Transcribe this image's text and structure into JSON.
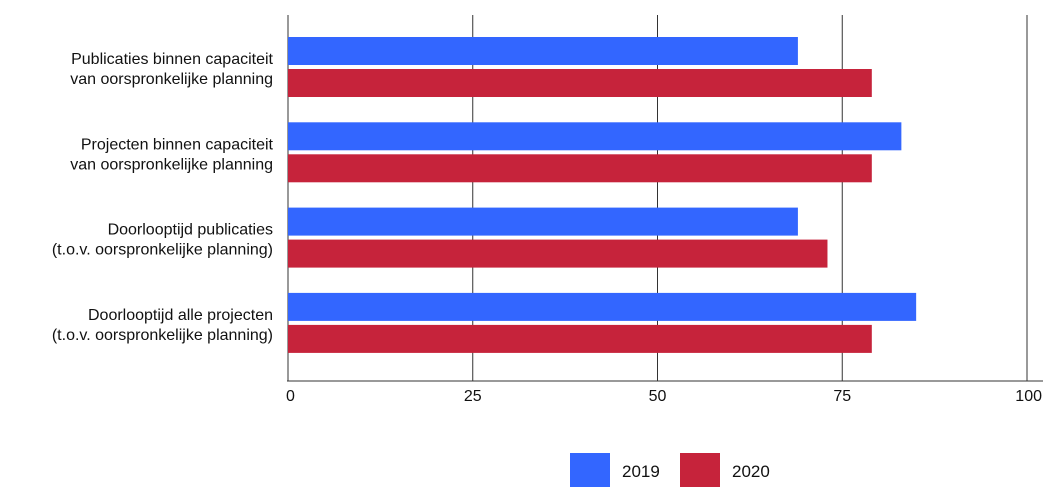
{
  "chart_data": {
    "type": "bar",
    "orientation": "horizontal",
    "categories": [
      [
        "Publicaties binnen capaciteit",
        "van oorspronkelijke planning"
      ],
      [
        "Projecten binnen capaciteit",
        "van oorspronkelijke planning"
      ],
      [
        "Doorlooptijd publicaties",
        "(t.o.v. oorspronkelijke planning)"
      ],
      [
        "Doorlooptijd alle projecten",
        "(t.o.v. oorspronkelijke planning)"
      ]
    ],
    "series": [
      {
        "name": "2019",
        "color": "#3366ff",
        "values": [
          69,
          83,
          69,
          85
        ]
      },
      {
        "name": "2020",
        "color": "#c6233b",
        "values": [
          79,
          79,
          73,
          79
        ]
      }
    ],
    "xlim": [
      0,
      100
    ],
    "xticks": [
      "0",
      "25",
      "50",
      "75",
      "100"
    ],
    "grid": true,
    "legend_position": "bottom"
  }
}
